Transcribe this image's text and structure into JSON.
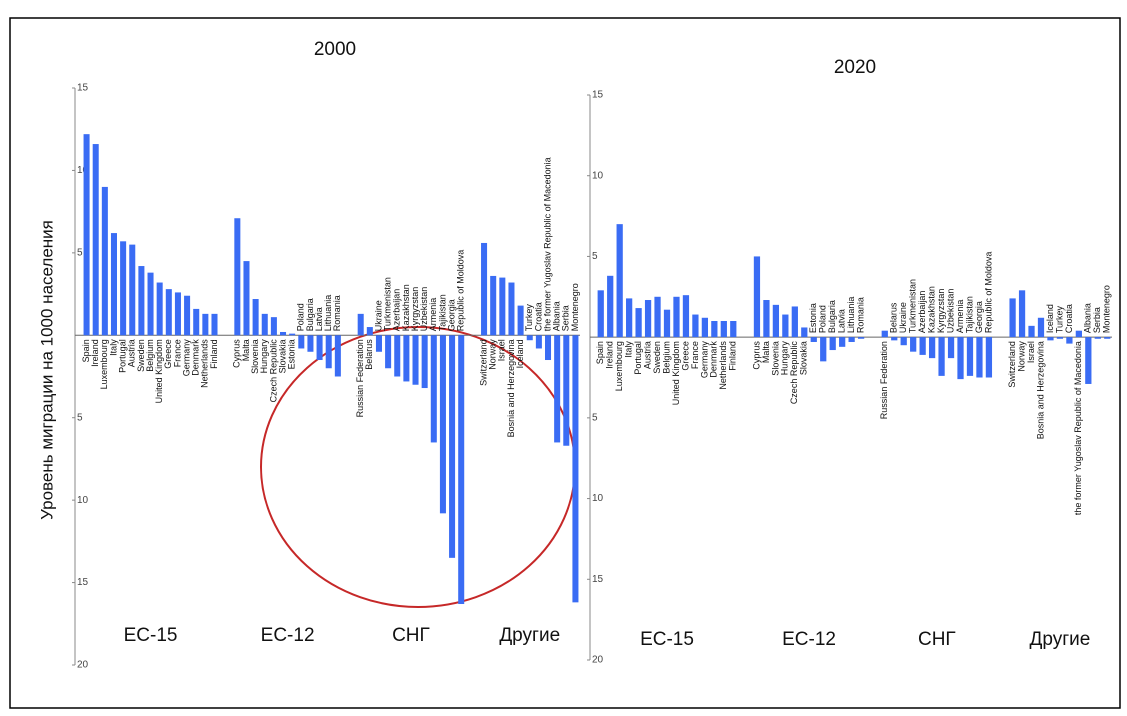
{
  "chart_data": [
    {
      "type": "bar",
      "title": "2000",
      "y_label": "Уровень миграции на 1000 населения",
      "color": "#3a6cf4",
      "ylim": [
        -20,
        15
      ],
      "yticks": [
        15,
        10,
        5,
        {
          "value": -5,
          "label": "5"
        },
        {
          "value": -10,
          "label": "10"
        },
        {
          "value": -15,
          "label": "15"
        },
        {
          "value": -20,
          "label": "20"
        }
      ],
      "groups": [
        {
          "name": "ЕС-15",
          "categories": [
            "Spain",
            "Ireland",
            "Luxembourg",
            "Italy",
            "Portugal",
            "Austria",
            "Sweden",
            "Belgium",
            "United Kingdom",
            "Greece",
            "France",
            "Germany",
            "Denmark",
            "Netherlands",
            "Finland"
          ],
          "values": [
            12.2,
            11.6,
            9.0,
            6.2,
            5.7,
            5.5,
            4.2,
            3.8,
            3.2,
            2.8,
            2.6,
            2.4,
            1.6,
            1.3,
            1.3
          ]
        },
        {
          "name": "ЕС-12",
          "categories": [
            "Cyprus",
            "Malta",
            "Slovenia",
            "Hungary",
            "Czech Republic",
            "Slovakia",
            "Estonia",
            "Poland",
            "Bulgaria",
            "Latvia",
            "Lithuania",
            "Romania"
          ],
          "values": [
            7.1,
            4.5,
            2.2,
            1.3,
            1.1,
            0.2,
            0.1,
            -0.8,
            -1.0,
            -1.5,
            -2.0,
            -2.5
          ]
        },
        {
          "name": "СНГ",
          "categories": [
            "Russian Federation",
            "Belarus",
            "Ukraine",
            "Turkmenistan",
            "Azerbaijan",
            "Kazakhstan",
            "Kyrgyzstan",
            "Uzbekistan",
            "Armenia",
            "Tajikistan",
            "Georgia",
            "Republic of Moldova"
          ],
          "values": [
            1.3,
            0.5,
            -1.0,
            -2.0,
            -2.5,
            -2.8,
            -3.0,
            -3.2,
            -6.5,
            -10.8,
            -13.5,
            -16.3
          ]
        },
        {
          "name": "Другие",
          "categories": [
            "Switzerland",
            "Norway",
            "Israel",
            "Bosnia and Herzegovina",
            "Iceland",
            "Turkey",
            "Croatia",
            "the former Yugoslav Republic of Macedonia",
            "Albania",
            "Serbia",
            "Montenegro"
          ],
          "values": [
            5.6,
            3.6,
            3.5,
            3.2,
            1.8,
            -0.3,
            -0.8,
            -1.5,
            -6.5,
            -6.7,
            -16.2
          ]
        }
      ]
    },
    {
      "type": "bar",
      "title": "2020",
      "color": "#3a6cf4",
      "ylim": [
        -20,
        15
      ],
      "yticks": [
        15,
        10,
        5,
        {
          "value": -5,
          "label": "5"
        },
        {
          "value": -10,
          "label": "10"
        },
        {
          "value": -15,
          "label": "15"
        },
        {
          "value": -20,
          "label": "20"
        }
      ],
      "groups": [
        {
          "name": "ЕС-15",
          "categories": [
            "Spain",
            "Ireland",
            "Luxembourg",
            "Italy",
            "Portugal",
            "Austria",
            "Sweden",
            "Belgium",
            "United Kingdom",
            "Greece",
            "France",
            "Germany",
            "Denmark",
            "Netherlands",
            "Finland"
          ],
          "values": [
            2.9,
            3.8,
            7.0,
            2.4,
            1.8,
            2.3,
            2.5,
            1.7,
            2.5,
            2.6,
            1.4,
            1.2,
            1.0,
            1.0,
            1.0
          ]
        },
        {
          "name": "ЕС-12",
          "categories": [
            "Cyprus",
            "Malta",
            "Slovenia",
            "Hungary",
            "Czech Republic",
            "Slovakia",
            "Estonia",
            "Poland",
            "Bulgaria",
            "Latvia",
            "Lithuania",
            "Romania"
          ],
          "values": [
            5.0,
            2.3,
            2.0,
            1.4,
            1.9,
            0.6,
            -0.3,
            -1.5,
            -0.8,
            -0.6,
            -0.3,
            -0.1
          ]
        },
        {
          "name": "СНГ",
          "categories": [
            "Russian Federation",
            "Belarus",
            "Ukraine",
            "Turkmenistan",
            "Azerbaijan",
            "Kazakhstan",
            "Kyrgyzstan",
            "Uzbekistan",
            "Armenia",
            "Tajikistan",
            "Georgia",
            "Republic of Moldova"
          ],
          "values": [
            0.4,
            -0.2,
            -0.5,
            -0.9,
            -1.1,
            -1.3,
            -2.4,
            -1.3,
            -2.6,
            -2.4,
            -2.5,
            -2.5
          ]
        },
        {
          "name": "Другие",
          "categories": [
            "Switzerland",
            "Norway",
            "Israel",
            "Bosnia and Herzegovina",
            "Iceland",
            "Turkey",
            "Croatia",
            "the former Yugoslav Republic of Macedonia",
            "Albania",
            "Serbia",
            "Montenegro"
          ],
          "values": [
            2.4,
            2.9,
            0.7,
            1.2,
            -0.2,
            -0.1,
            -0.4,
            0.4,
            -2.9,
            -0.1,
            -0.1
          ]
        }
      ]
    }
  ]
}
